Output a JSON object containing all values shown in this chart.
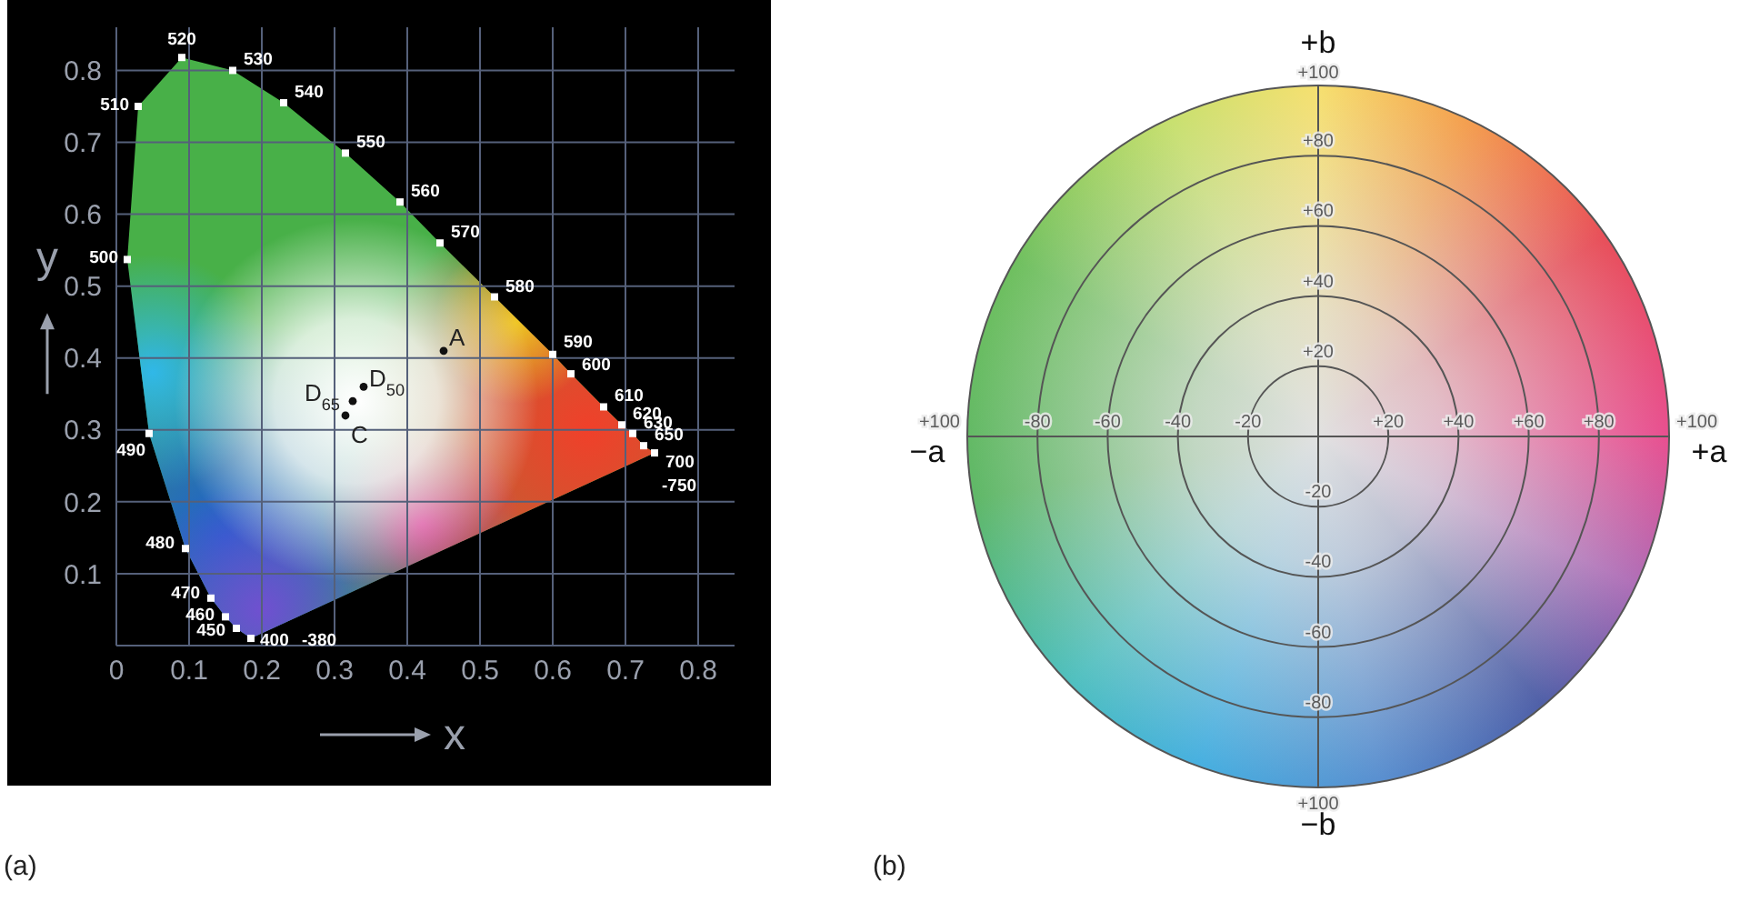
{
  "chart_data": [
    {
      "type": "scatter",
      "title": "(a)",
      "xlabel": "x",
      "ylabel": "y",
      "series": [
        {
          "color": "#ffffff",
          "marker": "square",
          "x": [
            0.185,
            0.165,
            0.15,
            0.13,
            0.095,
            0.045,
            0.015,
            0.03,
            0.09,
            0.16,
            0.23,
            0.315,
            0.39,
            0.445,
            0.52,
            0.6,
            0.625,
            0.67,
            0.695,
            0.71,
            0.725,
            0.74
          ],
          "values": [
            0.01,
            0.024,
            0.04,
            0.066,
            0.135,
            0.295,
            0.537,
            0.75,
            0.818,
            0.8,
            0.755,
            0.685,
            0.617,
            0.56,
            0.485,
            0.405,
            0.378,
            0.332,
            0.307,
            0.295,
            0.278,
            0.268
          ]
        },
        {
          "color": "#111111",
          "marker": "circle",
          "x": [
            0.45,
            0.34,
            0.325,
            0.315
          ],
          "values": [
            0.41,
            0.36,
            0.34,
            0.32
          ]
        }
      ],
      "annotations": [
        {
          "text": "400",
          "x": 0.185,
          "y": 0.01
        },
        {
          "text": "-380",
          "x": 0.185,
          "y": 0.01
        },
        {
          "text": "450",
          "x": 0.165,
          "y": 0.024
        },
        {
          "text": "460",
          "x": 0.15,
          "y": 0.04
        },
        {
          "text": "470",
          "x": 0.13,
          "y": 0.066
        },
        {
          "text": "480",
          "x": 0.095,
          "y": 0.135
        },
        {
          "text": "490",
          "x": 0.045,
          "y": 0.295
        },
        {
          "text": "500",
          "x": 0.015,
          "y": 0.537
        },
        {
          "text": "510",
          "x": 0.03,
          "y": 0.75
        },
        {
          "text": "520",
          "x": 0.09,
          "y": 0.818
        },
        {
          "text": "530",
          "x": 0.16,
          "y": 0.8
        },
        {
          "text": "540",
          "x": 0.23,
          "y": 0.755
        },
        {
          "text": "550",
          "x": 0.315,
          "y": 0.685
        },
        {
          "text": "560",
          "x": 0.39,
          "y": 0.617
        },
        {
          "text": "570",
          "x": 0.445,
          "y": 0.56
        },
        {
          "text": "580",
          "x": 0.52,
          "y": 0.485
        },
        {
          "text": "590",
          "x": 0.6,
          "y": 0.405
        },
        {
          "text": "600",
          "x": 0.625,
          "y": 0.378
        },
        {
          "text": "610",
          "x": 0.67,
          "y": 0.332
        },
        {
          "text": "620",
          "x": 0.695,
          "y": 0.307
        },
        {
          "text": "630",
          "x": 0.71,
          "y": 0.295
        },
        {
          "text": "650",
          "x": 0.725,
          "y": 0.278
        },
        {
          "text": "700",
          "x": 0.74,
          "y": 0.268
        },
        {
          "text": "-750",
          "x": 0.74,
          "y": 0.268
        },
        {
          "text": "A",
          "x": 0.45,
          "y": 0.41
        },
        {
          "text": "D$_{50}$",
          "x": 0.34,
          "y": 0.36
        },
        {
          "text": "D$_{65}$",
          "x": 0.325,
          "y": 0.34
        },
        {
          "text": "C",
          "x": 0.315,
          "y": 0.32
        }
      ],
      "xlim": [
        0,
        0.85
      ],
      "ylim": [
        0,
        0.86
      ],
      "xticks": [
        0,
        0.1,
        0.2,
        0.3,
        0.4,
        0.5,
        0.6,
        0.7,
        0.8
      ],
      "yticks": [
        0.1,
        0.2,
        0.3,
        0.4,
        0.5,
        0.6,
        0.7,
        0.8
      ],
      "grid": true
    },
    {
      "type": "other",
      "title": "(b)",
      "annotations": [
        "−a",
        "+a",
        "+b",
        "−b",
        "+100",
        "-80",
        "-60",
        "-40",
        "-20",
        "+20",
        "+40",
        "+60",
        "+80",
        "+100",
        "+100",
        "+80",
        "+60",
        "+40",
        "+20",
        "-20",
        "-40",
        "-60",
        "-80",
        "+100"
      ]
    }
  ]
}
